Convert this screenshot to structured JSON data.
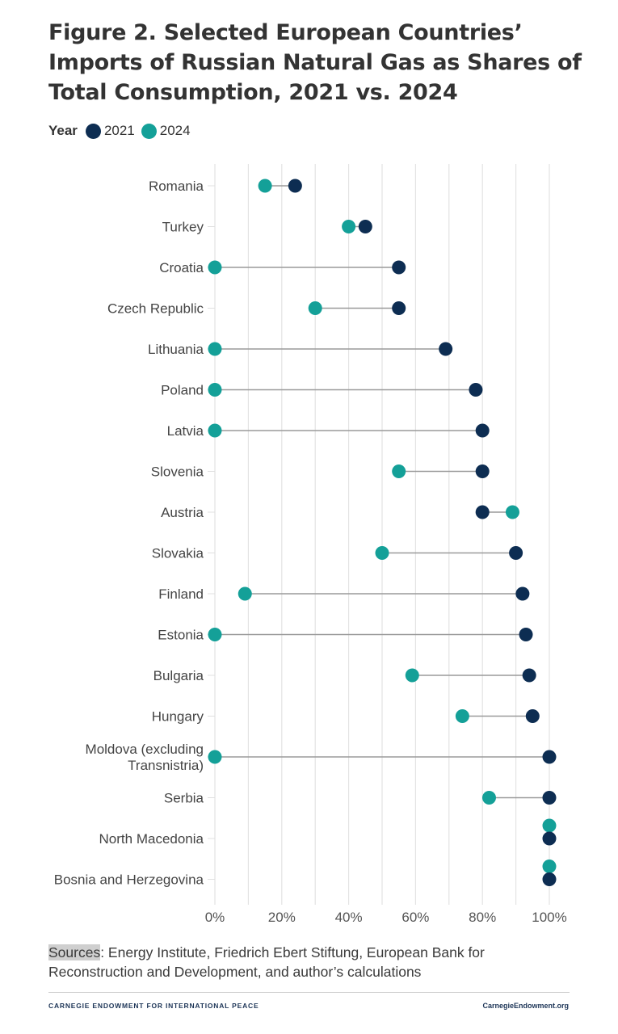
{
  "title": "Figure 2. Selected European Countries’ Imports of Russian Natural Gas as Shares of Total Consumption, 2021 vs. 2024",
  "legend": {
    "title": "Year",
    "items": [
      {
        "label": "2021",
        "color": "#0d2d52"
      },
      {
        "label": "2024",
        "color": "#14a098"
      }
    ]
  },
  "chart_data": {
    "type": "dumbbell",
    "title": "Figure 2. Selected European Countries’ Imports of Russian Natural Gas as Shares of Total Consumption, 2021 vs. 2024",
    "xlabel": "",
    "ylabel": "",
    "xlim": [
      0,
      100
    ],
    "x_ticks": [
      0,
      20,
      40,
      60,
      80,
      100
    ],
    "x_tick_labels": [
      "0%",
      "20%",
      "40%",
      "60%",
      "80%",
      "100%"
    ],
    "grid": true,
    "legend_position": "top-left",
    "categories": [
      [
        "Romania"
      ],
      [
        "Turkey"
      ],
      [
        "Croatia"
      ],
      [
        "Czech Republic"
      ],
      [
        "Lithuania"
      ],
      [
        "Poland"
      ],
      [
        "Latvia"
      ],
      [
        "Slovenia"
      ],
      [
        "Austria"
      ],
      [
        "Slovakia"
      ],
      [
        "Finland"
      ],
      [
        "Estonia"
      ],
      [
        "Bulgaria"
      ],
      [
        "Hungary"
      ],
      [
        "Moldova (excluding",
        "Transnistria)"
      ],
      [
        "Serbia"
      ],
      [
        "North Macedonia"
      ],
      [
        "Bosnia and Herzegovina"
      ]
    ],
    "series": [
      {
        "name": "2021",
        "color": "#0d2d52",
        "values": [
          24,
          45,
          55,
          55,
          69,
          78,
          80,
          80,
          80,
          90,
          92,
          93,
          94,
          95,
          100,
          100,
          100,
          100
        ]
      },
      {
        "name": "2024",
        "color": "#14a098",
        "values": [
          15,
          40,
          0,
          30,
          0,
          0,
          0,
          55,
          89,
          50,
          9,
          0,
          59,
          74,
          0,
          82,
          100,
          100
        ]
      }
    ]
  },
  "sources": {
    "label": "Sources",
    "text": ": Energy Institute, Friedrich Ebert Stiftung, European Bank for Reconstruction and Development, and author’s calculations"
  },
  "footer": {
    "left": "CARNEGIE ENDOWMENT FOR INTERNATIONAL PEACE",
    "right": "CarnegieEndowment.org"
  }
}
